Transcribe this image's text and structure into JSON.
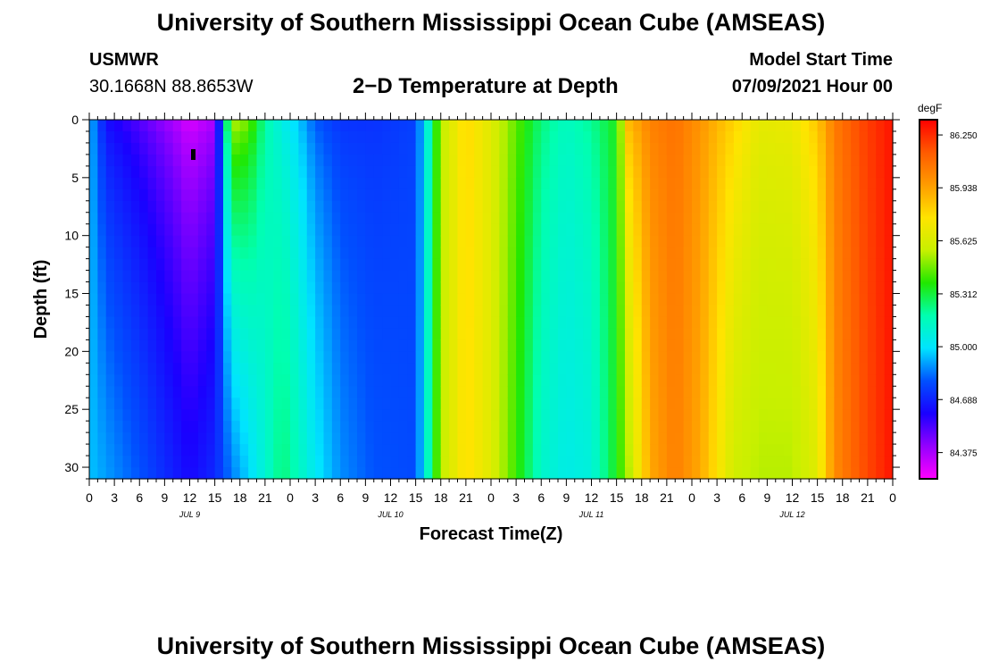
{
  "header": {
    "title": "University of Southern Mississippi Ocean Cube (AMSEAS)",
    "station": "USMWR",
    "coords": "30.1668N  88.8653W",
    "subtitle": "2−D Temperature at Depth",
    "start_label": "Model Start Time",
    "start_value": "07/09/2021 Hour 00"
  },
  "footer": {
    "title": "University of Southern Mississippi Ocean Cube (AMSEAS)"
  },
  "chart_data": {
    "type": "heatmap",
    "xlabel": "Forecast Time(Z)",
    "ylabel": "Depth (ft)",
    "x_hours": [
      0,
      96
    ],
    "ylim": [
      0,
      31
    ],
    "y_ticks": [
      "0",
      "5",
      "10",
      "15",
      "20",
      "25",
      "30"
    ],
    "x_tick_labels": [
      "0",
      "3",
      "6",
      "9",
      "12",
      "15",
      "18",
      "21",
      "0",
      "3",
      "6",
      "9",
      "12",
      "15",
      "18",
      "21",
      "0",
      "3",
      "6",
      "9",
      "12",
      "15",
      "18",
      "21",
      "0",
      "3",
      "6",
      "9",
      "12",
      "15",
      "18",
      "21",
      "0"
    ],
    "day_labels": [
      {
        "hour": 12,
        "label": "JUL 9"
      },
      {
        "hour": 36,
        "label": "JUL 10"
      },
      {
        "hour": 60,
        "label": "JUL 11"
      },
      {
        "hour": 84,
        "label": "JUL 12"
      }
    ],
    "colorbar": {
      "unit": "degF",
      "range": [
        84.22,
        86.34
      ],
      "tick_labels": [
        "86.250",
        "85.938",
        "85.625",
        "85.312",
        "85.000",
        "84.688",
        "84.375"
      ],
      "colors": [
        "#ff00ff",
        "#9400ff",
        "#1a00ff",
        "#0050ff",
        "#00e4ff",
        "#00ffb0",
        "#20e800",
        "#c8f000",
        "#ffe400",
        "#ff9c00",
        "#ff5a00",
        "#ff0000"
      ]
    },
    "profiles": [
      {
        "hour": 0,
        "surface": 84.95,
        "bottom": 84.95
      },
      {
        "hour": 2,
        "surface": 84.62,
        "bottom": 84.9
      },
      {
        "hour": 6,
        "surface": 84.5,
        "bottom": 84.8
      },
      {
        "hour": 10,
        "surface": 84.36,
        "bottom": 84.68
      },
      {
        "hour": 12,
        "surface": 84.27,
        "bottom": 84.62
      },
      {
        "hour": 15,
        "surface": 84.36,
        "bottom": 84.7
      },
      {
        "hour": 17,
        "surface": 85.6,
        "bottom": 84.85
      },
      {
        "hour": 19,
        "surface": 85.5,
        "bottom": 84.97
      },
      {
        "hour": 21,
        "surface": 85.2,
        "bottom": 85.1
      },
      {
        "hour": 23,
        "surface": 85.05,
        "bottom": 85.25
      },
      {
        "hour": 25,
        "surface": 84.95,
        "bottom": 85.15
      },
      {
        "hour": 27,
        "surface": 84.8,
        "bottom": 85.02
      },
      {
        "hour": 30,
        "surface": 84.72,
        "bottom": 84.88
      },
      {
        "hour": 34,
        "surface": 84.72,
        "bottom": 84.8
      },
      {
        "hour": 39,
        "surface": 84.76,
        "bottom": 84.78
      },
      {
        "hour": 40.5,
        "surface": 85.1,
        "bottom": 85.15
      },
      {
        "hour": 42,
        "surface": 85.55,
        "bottom": 85.55
      },
      {
        "hour": 45,
        "surface": 85.8,
        "bottom": 85.78
      },
      {
        "hour": 48,
        "surface": 85.65,
        "bottom": 85.65
      },
      {
        "hour": 51,
        "surface": 85.45,
        "bottom": 85.4
      },
      {
        "hour": 54,
        "surface": 85.25,
        "bottom": 85.12
      },
      {
        "hour": 57,
        "surface": 85.15,
        "bottom": 85.05
      },
      {
        "hour": 60,
        "surface": 85.22,
        "bottom": 85.08
      },
      {
        "hour": 63,
        "surface": 85.35,
        "bottom": 85.35
      },
      {
        "hour": 64.5,
        "surface": 85.9,
        "bottom": 85.55
      },
      {
        "hour": 67,
        "surface": 86.04,
        "bottom": 85.92
      },
      {
        "hour": 70,
        "surface": 86.08,
        "bottom": 86.04
      },
      {
        "hour": 73,
        "surface": 85.98,
        "bottom": 85.92
      },
      {
        "hour": 77,
        "surface": 85.82,
        "bottom": 85.6
      },
      {
        "hour": 80,
        "surface": 85.68,
        "bottom": 85.55
      },
      {
        "hour": 84,
        "surface": 85.7,
        "bottom": 85.55
      },
      {
        "hour": 87,
        "surface": 85.85,
        "bottom": 85.65
      },
      {
        "hour": 89,
        "surface": 86.05,
        "bottom": 86.0
      },
      {
        "hour": 92,
        "surface": 86.18,
        "bottom": 86.15
      },
      {
        "hour": 96,
        "surface": 86.3,
        "bottom": 86.3
      }
    ]
  }
}
